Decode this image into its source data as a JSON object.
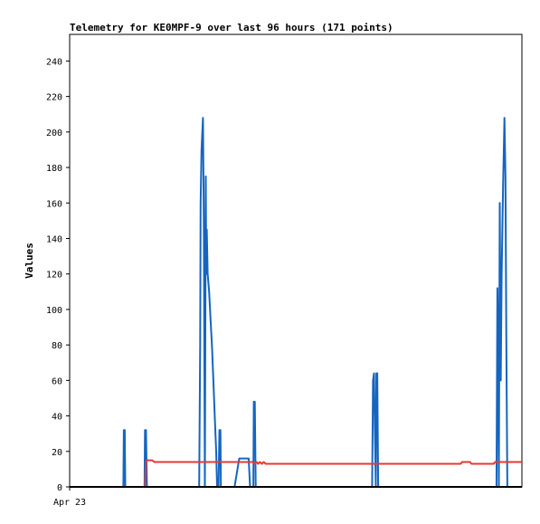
{
  "chart_data": {
    "type": "line",
    "title": "Telemetry for KE0MPF-9 over last 96 hours (171 points)",
    "xlabel": "",
    "ylabel": "Values",
    "x_tick_labels": [
      {
        "label": "Apr 23",
        "x": 0
      }
    ],
    "xlim": [
      0,
      96
    ],
    "ylim": [
      0,
      255
    ],
    "y_ticks": [
      0,
      20,
      40,
      60,
      80,
      100,
      120,
      140,
      160,
      180,
      200,
      220,
      240
    ],
    "grid": false,
    "legend": "none",
    "series": [
      {
        "color": "#1565c0",
        "points": [
          [
            0,
            0
          ],
          [
            11.4,
            0
          ],
          [
            11.5,
            32
          ],
          [
            11.7,
            32
          ],
          [
            11.8,
            0
          ],
          [
            15.9,
            0
          ],
          [
            16.0,
            32
          ],
          [
            16.2,
            32
          ],
          [
            16.4,
            0
          ],
          [
            27.5,
            0
          ],
          [
            27.7,
            80
          ],
          [
            27.8,
            160
          ],
          [
            28.0,
            190
          ],
          [
            28.3,
            208
          ],
          [
            28.5,
            145
          ],
          [
            28.7,
            0
          ],
          [
            28.9,
            175
          ],
          [
            29.0,
            120
          ],
          [
            29.1,
            145
          ],
          [
            29.3,
            120
          ],
          [
            29.6,
            110
          ],
          [
            29.9,
            95
          ],
          [
            30.2,
            80
          ],
          [
            30.5,
            60
          ],
          [
            30.8,
            40
          ],
          [
            31.1,
            20
          ],
          [
            31.3,
            0
          ],
          [
            31.6,
            0
          ],
          [
            31.8,
            32
          ],
          [
            32.0,
            32
          ],
          [
            32.1,
            0
          ],
          [
            35.0,
            0
          ],
          [
            36.0,
            16
          ],
          [
            38.0,
            16
          ],
          [
            38.3,
            0
          ],
          [
            39.0,
            0
          ],
          [
            39.1,
            48
          ],
          [
            39.3,
            48
          ],
          [
            39.5,
            0
          ],
          [
            64.2,
            0
          ],
          [
            64.4,
            60
          ],
          [
            64.6,
            64
          ],
          [
            64.8,
            30
          ],
          [
            65.0,
            0
          ],
          [
            65.1,
            64
          ],
          [
            65.3,
            64
          ],
          [
            65.5,
            0
          ],
          [
            90.6,
            0
          ],
          [
            90.8,
            112
          ],
          [
            90.9,
            90
          ],
          [
            91.1,
            0
          ],
          [
            91.3,
            160
          ],
          [
            91.5,
            60
          ],
          [
            91.7,
            120
          ],
          [
            92.0,
            170
          ],
          [
            92.3,
            208
          ],
          [
            92.5,
            175
          ],
          [
            92.7,
            80
          ],
          [
            92.9,
            0
          ],
          [
            96,
            0
          ]
        ]
      },
      {
        "color": "#e53935",
        "points": [
          [
            16.0,
            0
          ],
          [
            16.2,
            14
          ],
          [
            16.4,
            15
          ],
          [
            17.5,
            15
          ],
          [
            18.0,
            14
          ],
          [
            38.0,
            14
          ],
          [
            38.8,
            14
          ],
          [
            39.3,
            13
          ],
          [
            39.7,
            14
          ],
          [
            40.0,
            13
          ],
          [
            40.4,
            14
          ],
          [
            40.8,
            13
          ],
          [
            41.2,
            14
          ],
          [
            41.6,
            13
          ],
          [
            83.0,
            13
          ],
          [
            83.3,
            14
          ],
          [
            85.0,
            14
          ],
          [
            85.3,
            13
          ],
          [
            89.5,
            13
          ],
          [
            90.0,
            13
          ],
          [
            90.3,
            14
          ],
          [
            96,
            14
          ]
        ]
      },
      {
        "color": "#000000",
        "points": [
          [
            0,
            0
          ],
          [
            96,
            0
          ]
        ]
      }
    ]
  }
}
